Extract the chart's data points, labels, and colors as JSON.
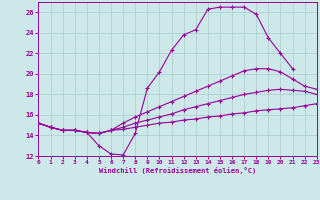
{
  "xlabel": "Windchill (Refroidissement éolien,°C)",
  "xlim": [
    0,
    23
  ],
  "ylim": [
    12,
    27
  ],
  "yticks": [
    12,
    14,
    16,
    18,
    20,
    22,
    24,
    26
  ],
  "xticks": [
    0,
    1,
    2,
    3,
    4,
    5,
    6,
    7,
    8,
    9,
    10,
    11,
    12,
    13,
    14,
    15,
    16,
    17,
    18,
    19,
    20,
    21,
    22,
    23
  ],
  "bg_color": "#cce8e8",
  "grid_color": "#aacccc",
  "line_color": "#990099",
  "curves": [
    {
      "x": [
        0,
        1,
        2,
        3,
        4,
        5,
        6,
        7,
        8,
        9,
        10,
        11,
        12,
        13,
        14,
        15,
        16,
        17,
        18,
        19,
        20,
        21
      ],
      "y": [
        15.2,
        14.8,
        14.5,
        14.5,
        14.3,
        13.0,
        12.2,
        12.1,
        14.2,
        18.6,
        20.2,
        22.3,
        23.8,
        24.3,
        26.3,
        26.5,
        26.5,
        26.5,
        25.8,
        23.5,
        22.0,
        20.5
      ]
    },
    {
      "x": [
        0,
        1,
        2,
        3,
        4,
        5,
        6,
        7,
        8,
        9,
        10,
        11,
        12,
        13,
        14,
        15,
        16,
        17,
        18,
        19,
        20,
        21,
        22,
        23
      ],
      "y": [
        15.2,
        14.8,
        14.5,
        14.5,
        14.3,
        14.2,
        14.5,
        15.2,
        15.8,
        16.3,
        16.8,
        17.3,
        17.8,
        18.3,
        18.8,
        19.3,
        19.8,
        20.3,
        20.5,
        20.5,
        20.2,
        19.5,
        18.8,
        18.5
      ]
    },
    {
      "x": [
        0,
        1,
        2,
        3,
        4,
        5,
        6,
        7,
        8,
        9,
        10,
        11,
        12,
        13,
        14,
        15,
        16,
        17,
        18,
        19,
        20,
        21,
        22,
        23
      ],
      "y": [
        15.2,
        14.8,
        14.5,
        14.5,
        14.3,
        14.2,
        14.5,
        14.8,
        15.2,
        15.5,
        15.8,
        16.1,
        16.5,
        16.8,
        17.1,
        17.4,
        17.7,
        18.0,
        18.2,
        18.4,
        18.5,
        18.4,
        18.3,
        18.0
      ]
    },
    {
      "x": [
        0,
        1,
        2,
        3,
        4,
        5,
        6,
        7,
        8,
        9,
        10,
        11,
        12,
        13,
        14,
        15,
        16,
        17,
        18,
        19,
        20,
        21,
        22,
        23
      ],
      "y": [
        15.2,
        14.8,
        14.5,
        14.5,
        14.3,
        14.2,
        14.5,
        14.6,
        14.8,
        15.0,
        15.2,
        15.3,
        15.5,
        15.6,
        15.8,
        15.9,
        16.1,
        16.2,
        16.4,
        16.5,
        16.6,
        16.7,
        16.9,
        17.1
      ]
    }
  ]
}
